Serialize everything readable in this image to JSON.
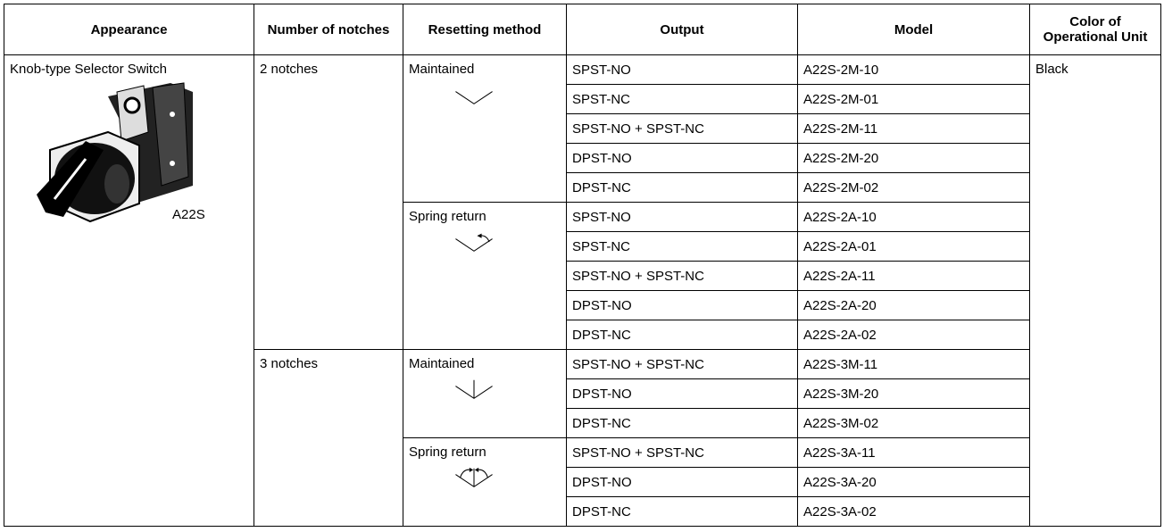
{
  "table": {
    "header": [
      "Appearance",
      "Number of notches",
      "Resetting method",
      "Output",
      "Model",
      "Color of Operational Unit"
    ],
    "appearance": {
      "label": "Knob-type Selector Switch",
      "image_caption": "A22S"
    },
    "color": "Black",
    "notch_groups": [
      {
        "notches": "2 notches",
        "methods": [
          {
            "method": "Maintained",
            "rows": [
              {
                "output": "SPST-NO",
                "model": "A22S-2M-10"
              },
              {
                "output": "SPST-NC",
                "model": "A22S-2M-01"
              },
              {
                "output": "SPST-NO + SPST-NC",
                "model": "A22S-2M-11"
              },
              {
                "output": "DPST-NO",
                "model": "A22S-2M-20"
              },
              {
                "output": "DPST-NC",
                "model": "A22S-2M-02"
              }
            ]
          },
          {
            "method": "Spring return",
            "rows": [
              {
                "output": "SPST-NO",
                "model": "A22S-2A-10"
              },
              {
                "output": "SPST-NC",
                "model": "A22S-2A-01"
              },
              {
                "output": "SPST-NO + SPST-NC",
                "model": "A22S-2A-11"
              },
              {
                "output": "DPST-NO",
                "model": "A22S-2A-20"
              },
              {
                "output": "DPST-NC",
                "model": "A22S-2A-02"
              }
            ]
          }
        ]
      },
      {
        "notches": "3 notches",
        "methods": [
          {
            "method": "Maintained",
            "rows": [
              {
                "output": "SPST-NO + SPST-NC",
                "model": "A22S-3M-11"
              },
              {
                "output": "DPST-NO",
                "model": "A22S-3M-20"
              },
              {
                "output": "DPST-NC",
                "model": "A22S-3M-02"
              }
            ]
          },
          {
            "method": "Spring return",
            "rows": [
              {
                "output": "SPST-NO + SPST-NC",
                "model": "A22S-3A-11"
              },
              {
                "output": "DPST-NO",
                "model": "A22S-3A-20"
              },
              {
                "output": "DPST-NC",
                "model": "A22S-3A-02"
              }
            ]
          }
        ]
      }
    ]
  }
}
